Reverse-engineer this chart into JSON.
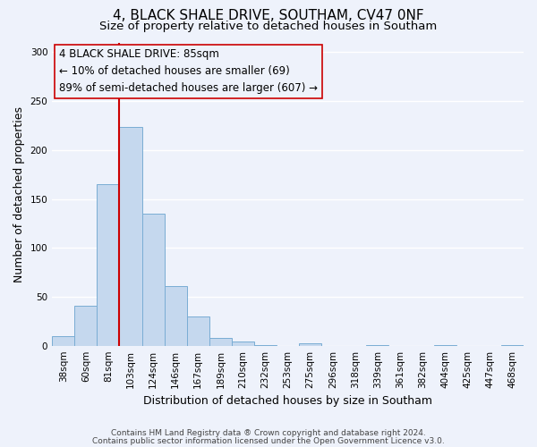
{
  "title": "4, BLACK SHALE DRIVE, SOUTHAM, CV47 0NF",
  "subtitle": "Size of property relative to detached houses in Southam",
  "xlabel": "Distribution of detached houses by size in Southam",
  "ylabel": "Number of detached properties",
  "footnote1": "Contains HM Land Registry data ® Crown copyright and database right 2024.",
  "footnote2": "Contains public sector information licensed under the Open Government Licence v3.0.",
  "bar_labels": [
    "38sqm",
    "60sqm",
    "81sqm",
    "103sqm",
    "124sqm",
    "146sqm",
    "167sqm",
    "189sqm",
    "210sqm",
    "232sqm",
    "253sqm",
    "275sqm",
    "296sqm",
    "318sqm",
    "339sqm",
    "361sqm",
    "382sqm",
    "404sqm",
    "425sqm",
    "447sqm",
    "468sqm"
  ],
  "bar_values": [
    10,
    41,
    165,
    224,
    135,
    61,
    30,
    8,
    4,
    1,
    0,
    2,
    0,
    0,
    1,
    0,
    0,
    1,
    0,
    0,
    1
  ],
  "bar_color": "#c5d8ee",
  "bar_edge_color": "#7aadd4",
  "ylim": [
    0,
    310
  ],
  "yticks": [
    0,
    50,
    100,
    150,
    200,
    250,
    300
  ],
  "property_label": "4 BLACK SHALE DRIVE: 85sqm",
  "annotation_line1": "← 10% of detached houses are smaller (69)",
  "annotation_line2": "89% of semi-detached houses are larger (607) →",
  "vline_color": "#cc0000",
  "box_color": "#cc0000",
  "background_color": "#eef2fb",
  "grid_color": "#ffffff",
  "title_fontsize": 11,
  "subtitle_fontsize": 9.5,
  "axis_label_fontsize": 9,
  "tick_fontsize": 7.5,
  "annotation_fontsize": 8.5,
  "footnote_fontsize": 6.5
}
